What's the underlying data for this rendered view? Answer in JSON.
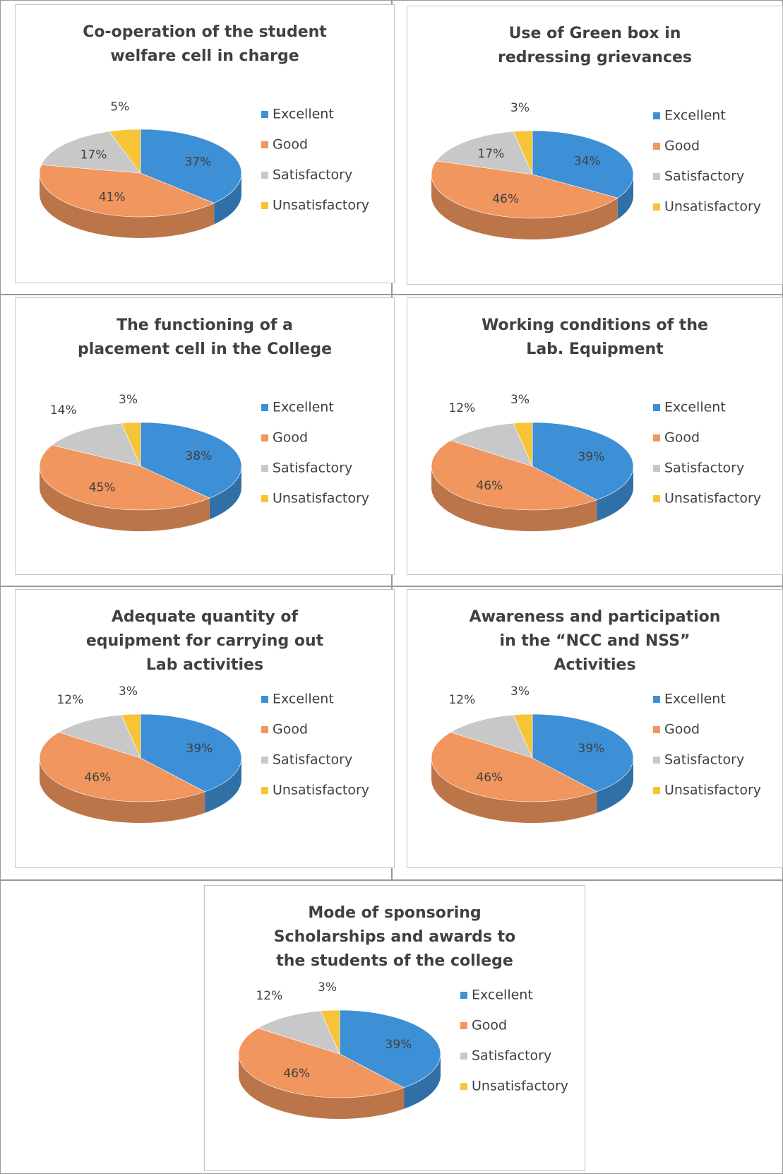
{
  "chart_data": [
    {
      "type": "pie",
      "title": "Co-operation of the student welfare cell in charge",
      "categories": [
        "Excellent",
        "Good",
        "Satisfactory",
        "Unsatisfactory"
      ],
      "values": [
        37,
        41,
        17,
        5
      ],
      "value_labels": [
        "37%",
        "41%",
        "17%",
        "5%"
      ],
      "colors": [
        "#3d8fd6",
        "#f0965e",
        "#c8c8c8",
        "#f7c437"
      ]
    },
    {
      "type": "pie",
      "title": "Use of  Green box  in redressing grievances",
      "categories": [
        "Excellent",
        "Good",
        "Satisfactory",
        "Unsatisfactory"
      ],
      "values": [
        34,
        46,
        17,
        3
      ],
      "value_labels": [
        "34%",
        "46%",
        "17%",
        "3%"
      ],
      "colors": [
        "#3d8fd6",
        "#f0965e",
        "#c8c8c8",
        "#f7c437"
      ]
    },
    {
      "type": "pie",
      "title": "The functioning of a placement cell in the College",
      "categories": [
        "Excellent",
        "Good",
        "Satisfactory",
        "Unsatisfactory"
      ],
      "values": [
        38,
        45,
        14,
        3
      ],
      "value_labels": [
        "38%",
        "45%",
        "14%",
        "3%"
      ],
      "colors": [
        "#3d8fd6",
        "#f0965e",
        "#c8c8c8",
        "#f7c437"
      ]
    },
    {
      "type": "pie",
      "title": "Working conditions of the Lab. Equipment",
      "categories": [
        "Excellent",
        "Good",
        "Satisfactory",
        "Unsatisfactory"
      ],
      "values": [
        39,
        46,
        12,
        3
      ],
      "value_labels": [
        "39%",
        "46%",
        "12%",
        "3%"
      ],
      "colors": [
        "#3d8fd6",
        "#f0965e",
        "#c8c8c8",
        "#f7c437"
      ]
    },
    {
      "type": "pie",
      "title": "Adequate quantity of equipment for carrying out Lab activities",
      "categories": [
        "Excellent",
        "Good",
        "Satisfactory",
        "Unsatisfactory"
      ],
      "values": [
        39,
        46,
        12,
        3
      ],
      "value_labels": [
        "39%",
        "46%",
        "12%",
        "3%"
      ],
      "colors": [
        "#3d8fd6",
        "#f0965e",
        "#c8c8c8",
        "#f7c437"
      ]
    },
    {
      "type": "pie",
      "title": "Awareness and participation in the “NCC and NSS” Activities",
      "categories": [
        "Excellent",
        "Good",
        "Satisfactory",
        "Unsatisfactory"
      ],
      "values": [
        39,
        46,
        12,
        3
      ],
      "value_labels": [
        "39%",
        "46%",
        "12%",
        "3%"
      ],
      "colors": [
        "#3d8fd6",
        "#f0965e",
        "#c8c8c8",
        "#f7c437"
      ]
    },
    {
      "type": "pie",
      "title": "Mode of  sponsoring Scholarships and  awards to the students of the college",
      "categories": [
        "Excellent",
        "Good",
        "Satisfactory",
        "Unsatisfactory"
      ],
      "values": [
        39,
        46,
        12,
        3
      ],
      "value_labels": [
        "39%",
        "46%",
        "12%",
        "3%"
      ],
      "colors": [
        "#3d8fd6",
        "#f0965e",
        "#c8c8c8",
        "#f7c437"
      ]
    }
  ]
}
